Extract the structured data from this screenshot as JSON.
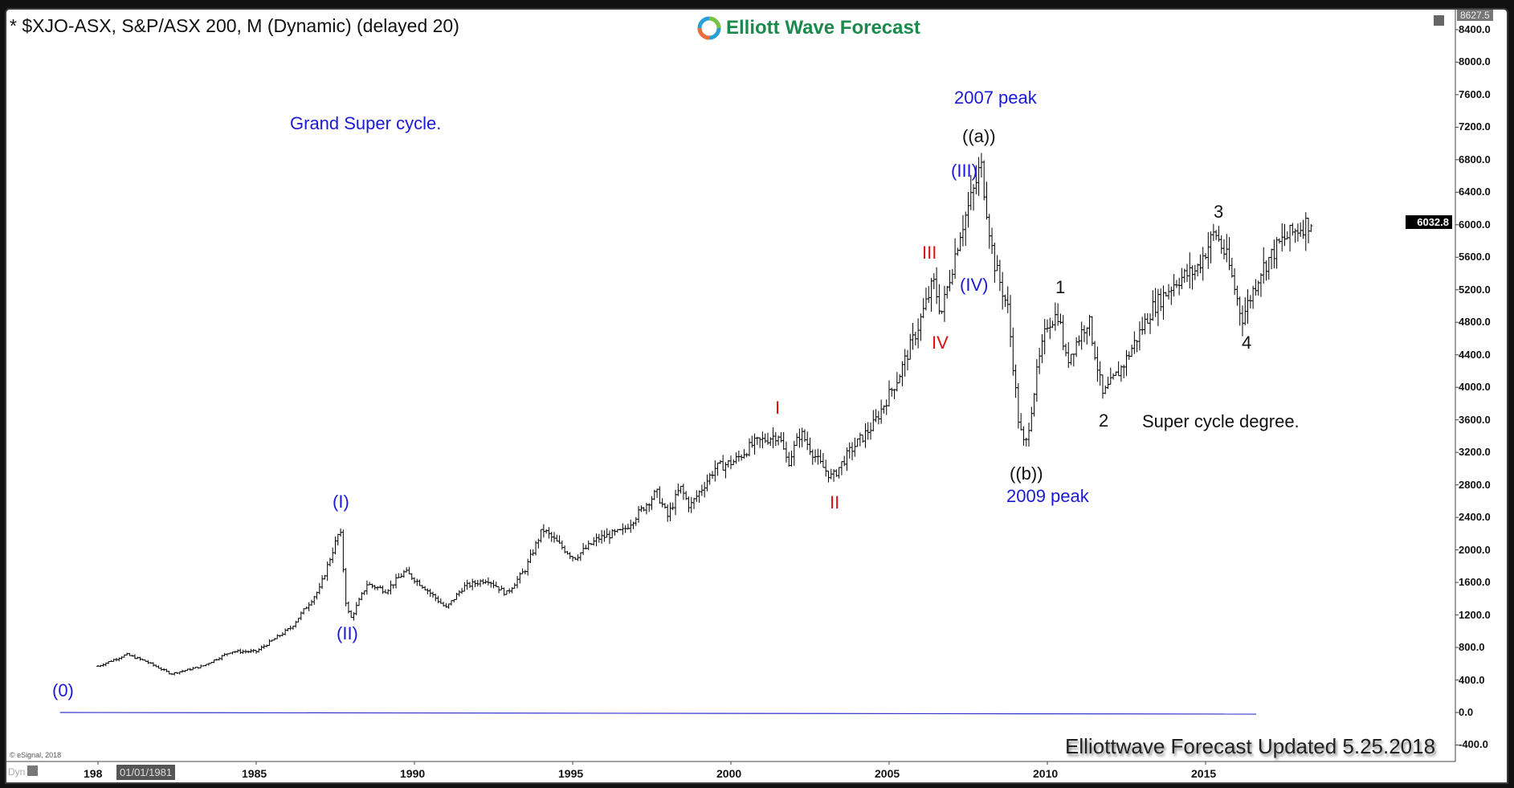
{
  "header": {
    "title": "* $XJO-ASX, S&P/ASX 200, M (Dynamic) (delayed 20)",
    "logo_text": "Elliott Wave Forecast"
  },
  "footer": {
    "text": "Elliottwave Forecast Updated 5.25.2018",
    "copyright": "© eSignal, 2018",
    "dyn": "Dyn",
    "date_tooltip": "01/01/1981"
  },
  "axis": {
    "top_value": "8627.5",
    "last_price": "6032.8"
  },
  "annotations": [
    {
      "text": "Grand Super cycle.",
      "color": "blue"
    },
    {
      "text": "2007 peak",
      "color": "blue"
    },
    {
      "text": "((a))",
      "color": "black"
    },
    {
      "text": "(III)",
      "color": "blue"
    },
    {
      "text": "III",
      "color": "red"
    },
    {
      "text": "(IV)",
      "color": "blue"
    },
    {
      "text": "IV",
      "color": "red"
    },
    {
      "text": "1",
      "color": "black"
    },
    {
      "text": "I",
      "color": "red"
    },
    {
      "text": "II",
      "color": "red"
    },
    {
      "text": "2",
      "color": "black"
    },
    {
      "text": "Super cycle degree.",
      "color": "black"
    },
    {
      "text": "3",
      "color": "black"
    },
    {
      "text": "4",
      "color": "black"
    },
    {
      "text": "((b))",
      "color": "black"
    },
    {
      "text": "2009 peak",
      "color": "blue"
    },
    {
      "text": "(I)",
      "color": "blue"
    },
    {
      "text": "(II)",
      "color": "blue"
    },
    {
      "text": "(0)",
      "color": "blue"
    }
  ],
  "chart_data": {
    "type": "ohlc-bar",
    "title": "* $XJO-ASX, S&P/ASX 200, M (Dynamic) (delayed 20)",
    "ylim": [
      -400,
      8627.5
    ],
    "yticks": [
      "-400.0",
      "0.0",
      "400.0",
      "800.0",
      "1200.0",
      "1600.0",
      "2000.0",
      "2400.0",
      "2800.0",
      "3200.0",
      "3600.0",
      "4000.0",
      "4400.0",
      "4800.0",
      "5200.0",
      "5600.0",
      "6000.0",
      "6400.0",
      "6800.0",
      "7200.0",
      "7600.0",
      "8000.0",
      "8400.0"
    ],
    "xticks": [
      "198",
      "1985",
      "1990",
      "1995",
      "2000",
      "2005",
      "2010",
      "2015"
    ],
    "xtick_years": [
      1980,
      1985,
      1990,
      1995,
      2000,
      2005,
      2010,
      2015
    ],
    "grid": false,
    "baseline_value": 0,
    "series": [
      {
        "x": [
          1980.0,
          1980.9,
          1981.5,
          1982.3,
          1983.3,
          1984.2,
          1985.0,
          1986.1,
          1987.0,
          1987.65,
          1987.85,
          1988.0,
          1988.5,
          1989.1,
          1989.7,
          1990.3,
          1991.0,
          1991.55,
          1992.3,
          1992.9,
          1993.5,
          1994.05,
          1994.6,
          1995.05,
          1995.8,
          1996.6,
          1997.65,
          1998.0,
          1998.4,
          1998.7,
          1999.5,
          2000.1,
          2000.7,
          2001.5,
          2001.8,
          2002.2,
          2002.8,
          2003.2,
          2003.75,
          2004.5,
          2005.3,
          2005.9,
          2006.4,
          2006.65,
          2007.25,
          2007.7,
          2007.9,
          2008.3,
          2008.75,
          2009.1,
          2009.3,
          2009.7,
          2010.0,
          2010.35,
          2010.6,
          2011.3,
          2011.75,
          2012.4,
          2013.3,
          2014.1,
          2014.7,
          2015.3,
          2015.7,
          2016.15,
          2016.75,
          2017.4,
          2018.0,
          2018.4
        ],
        "y": [
          570,
          713,
          630,
          475,
          570,
          750,
          750,
          1045,
          1520,
          2257,
          1283,
          1165,
          1580,
          1500,
          1735,
          1545,
          1283,
          1545,
          1640,
          1460,
          1760,
          2257,
          2055,
          1900,
          2140,
          2234,
          2709,
          2412,
          2768,
          2530,
          3006,
          3089,
          3303,
          3422,
          3065,
          3445,
          3065,
          2887,
          3208,
          3540,
          4134,
          4729,
          5299,
          4907,
          5917,
          6451,
          6748,
          5560,
          4966,
          3540,
          3243,
          4253,
          4788,
          4907,
          4313,
          4847,
          3897,
          4277,
          4966,
          5323,
          5441,
          5917,
          5560,
          4847,
          5441,
          5798,
          5976,
          6060
        ]
      }
    ]
  },
  "colors": {
    "up": "#000000",
    "baseline": "#3333cc",
    "blue": "#1a1ad6",
    "red": "#dd1111",
    "brand": "#1b8a4c"
  }
}
